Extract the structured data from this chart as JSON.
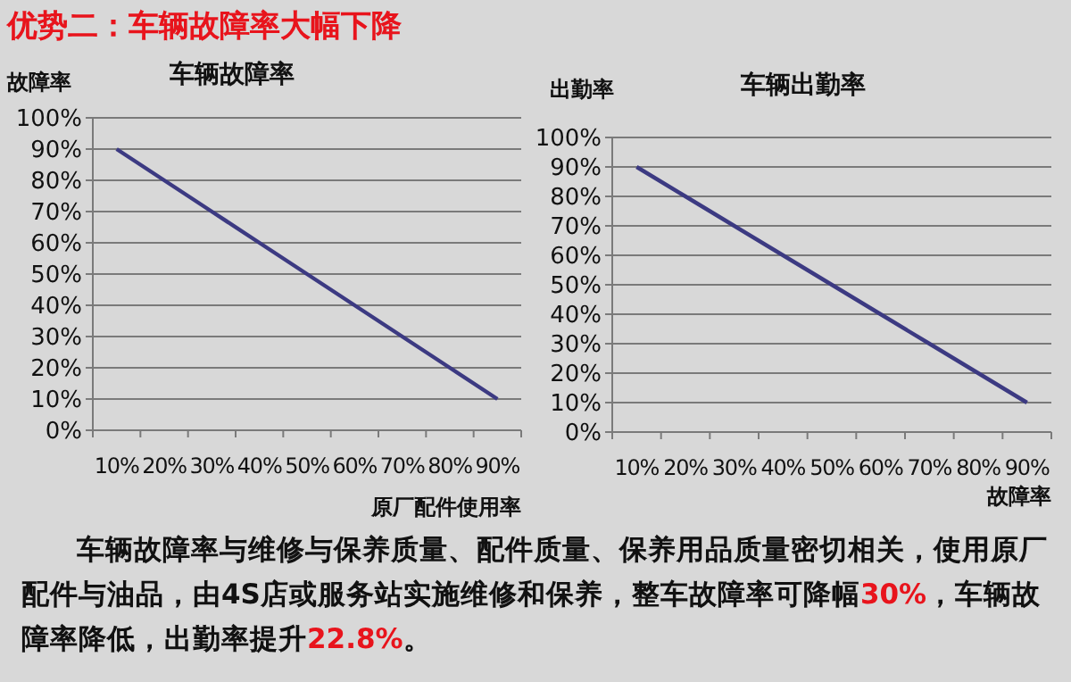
{
  "chart_data": [
    {
      "type": "line",
      "title": "车辆故障率",
      "xlabel": "原厂配件使用率",
      "ylabel": "故障率",
      "categories": [
        "10%",
        "20%",
        "30%",
        "40%",
        "50%",
        "60%",
        "70%",
        "80%",
        "90%"
      ],
      "series": [
        {
          "color": "#3c3a82",
          "values": [
            90,
            80,
            70,
            60,
            50,
            40,
            30,
            20,
            10
          ]
        }
      ],
      "ylim": [
        0,
        100
      ],
      "yticks": [
        {
          "value": 0,
          "label": "0%"
        },
        {
          "value": 10,
          "label": "10%"
        },
        {
          "value": 20,
          "label": "20%"
        },
        {
          "value": 30,
          "label": "30%"
        },
        {
          "value": 40,
          "label": "40%"
        },
        {
          "value": 50,
          "label": "50%"
        },
        {
          "value": 60,
          "label": "60%"
        },
        {
          "value": 70,
          "label": "70%"
        },
        {
          "value": 80,
          "label": "80%"
        },
        {
          "value": 90,
          "label": "90%"
        },
        {
          "value": 100,
          "label": "100%"
        }
      ],
      "grid": "y",
      "marker": "none",
      "line_style": "solid"
    },
    {
      "type": "line",
      "title": "车辆出勤率",
      "xlabel": "故障率",
      "ylabel": "出勤率",
      "categories": [
        "10%",
        "20%",
        "30%",
        "40%",
        "50%",
        "60%",
        "70%",
        "80%",
        "90%"
      ],
      "series": [
        {
          "color": "#3c3a82",
          "values": [
            90,
            80,
            70,
            60,
            50,
            40,
            30,
            20,
            10
          ]
        }
      ],
      "ylim": [
        0,
        100
      ],
      "yticks": [
        {
          "value": 0,
          "label": "0%"
        },
        {
          "value": 10,
          "label": "10%"
        },
        {
          "value": 20,
          "label": "20%"
        },
        {
          "value": 30,
          "label": "30%"
        },
        {
          "value": 40,
          "label": "40%"
        },
        {
          "value": 50,
          "label": "50%"
        },
        {
          "value": 60,
          "label": "60%"
        },
        {
          "value": 70,
          "label": "70%"
        },
        {
          "value": 80,
          "label": "80%"
        },
        {
          "value": 90,
          "label": "90%"
        },
        {
          "value": 100,
          "label": "100%"
        }
      ],
      "grid": "y",
      "marker": "none",
      "line_style": "solid"
    },
    {
      "type": "other",
      "title": "优势二：车辆故障率大幅下降",
      "annotations": [
        "车辆故障率与维修与保养质量、配件质量、保养用品质量密切相关，使用原厂配件与油品，由4S店或服务站实施维修和保养，整车故障率可降幅**30%**，车辆故障率降低，出勤率提升**22.8%**。"
      ]
    }
  ]
}
